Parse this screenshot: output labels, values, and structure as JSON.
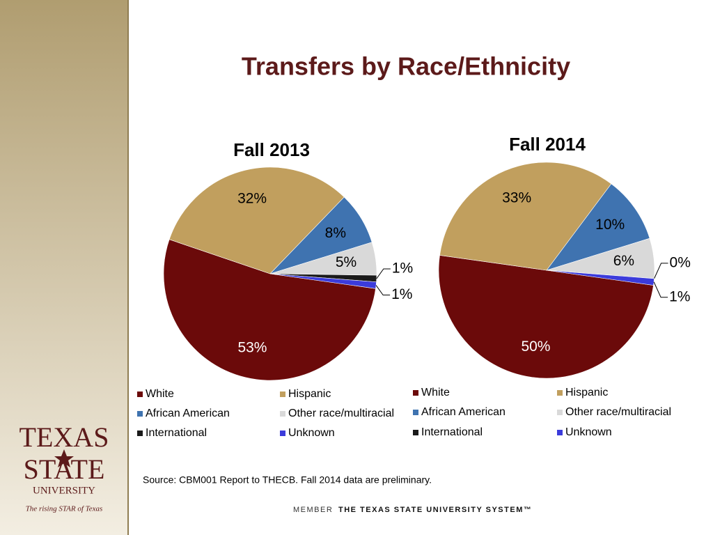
{
  "title": "Transfers by Race/Ethnicity",
  "chart_data": [
    {
      "type": "pie",
      "title": "Fall 2013",
      "categories": [
        "White",
        "Hispanic",
        "African American",
        "Other race/multiracial",
        "International",
        "Unknown"
      ],
      "values": [
        53,
        32,
        8,
        5,
        1,
        1
      ],
      "value_labels": [
        "53%",
        "32%",
        "8%",
        "5%",
        "1%",
        "1%"
      ],
      "colors": [
        "#6b0a0a",
        "#c19f5e",
        "#3f73b0",
        "#d9d9d9",
        "#1a1a1a",
        "#3b3bdb"
      ]
    },
    {
      "type": "pie",
      "title": "Fall 2014",
      "categories": [
        "White",
        "Hispanic",
        "African American",
        "Other race/multiracial",
        "International",
        "Unknown"
      ],
      "values": [
        50,
        33,
        10,
        6,
        0,
        1
      ],
      "value_labels": [
        "50%",
        "33%",
        "10%",
        "6%",
        "0%",
        "1%"
      ],
      "colors": [
        "#6b0a0a",
        "#c19f5e",
        "#3f73b0",
        "#d9d9d9",
        "#1a1a1a",
        "#3b3bdb"
      ]
    }
  ],
  "source": "Source:  CBM001 Report to THECB. Fall 2014 data are preliminary.",
  "logo": {
    "line1": "TEXAS",
    "line2": "STATE",
    "line3": "UNIVERSITY",
    "tagline": "The rising STAR of Texas"
  },
  "footer": {
    "prefix": "MEMBER",
    "name": "THE TEXAS STATE UNIVERSITY SYSTEM™"
  }
}
